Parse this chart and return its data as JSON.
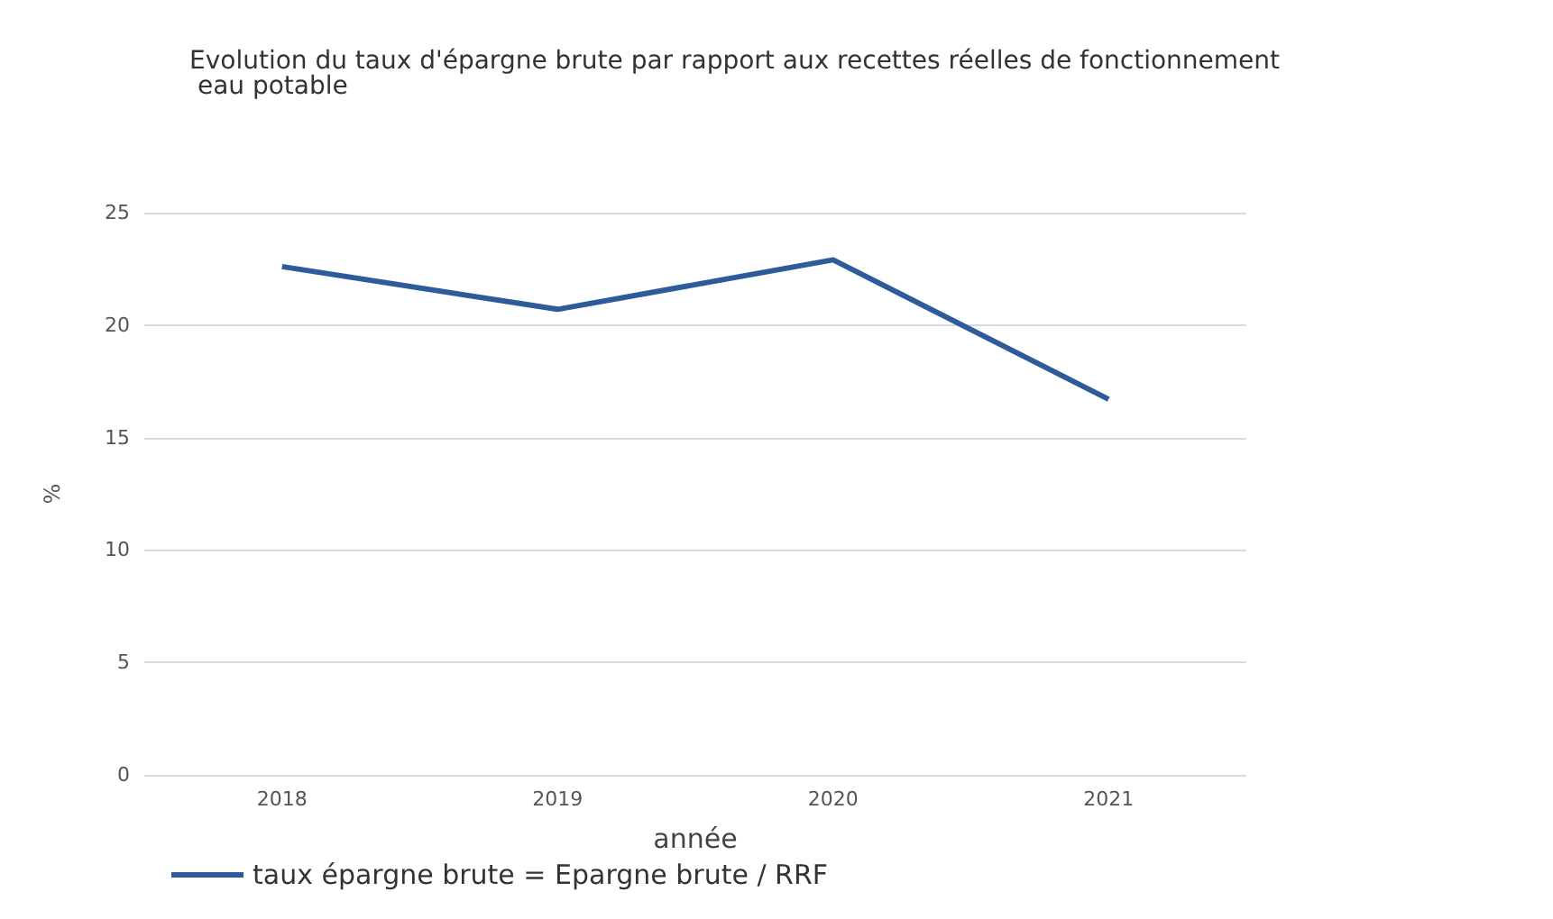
{
  "chart_data": {
    "type": "line",
    "title": "Evolution du taux d'épargne brute par rapport aux recettes réelles de fonctionnement eau potable",
    "xlabel": "année",
    "ylabel": "%",
    "categories": [
      "2018",
      "2019",
      "2020",
      "2021"
    ],
    "series": [
      {
        "name": "taux épargne brute = Epargne brute / RRF",
        "color": "#2e5c9a",
        "values": [
          22.6,
          20.7,
          22.9,
          16.7
        ]
      }
    ],
    "ylim": [
      0,
      25
    ],
    "yticks": [
      0,
      5,
      10,
      15,
      20,
      25
    ],
    "grid": "y",
    "legend": "bottom left",
    "marker": "none"
  }
}
